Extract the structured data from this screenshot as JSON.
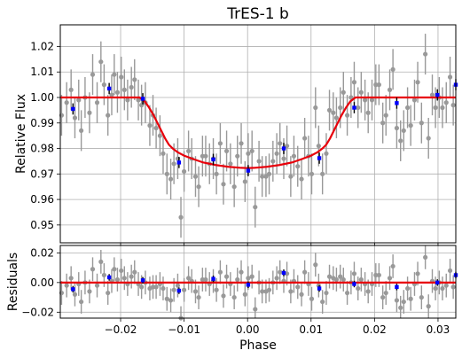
{
  "colors": {
    "model": "#e8000b",
    "binned": "#0000ff",
    "raw": "#999999",
    "grid": "#b0b0b0",
    "axes": "#000000",
    "background": "#ffffff"
  },
  "chart_data": [
    {
      "type": "scatter",
      "panel": "flux",
      "title": "TrES-1 b",
      "xlabel": "",
      "ylabel": "Relative Flux",
      "xlim": [
        -0.0295,
        0.0328
      ],
      "ylim": [
        0.943,
        1.0285
      ],
      "x_ticks": [],
      "y_ticks": [
        0.95,
        0.96,
        0.97,
        0.98,
        0.99,
        1.0,
        1.01,
        1.02
      ],
      "y_tick_labels": [
        "0.95",
        "0.96",
        "0.97",
        "0.98",
        "0.99",
        "1.00",
        "1.01",
        "1.02"
      ],
      "grid": true,
      "series": [
        {
          "kind": "raw",
          "x": [
            -0.0293,
            -0.0285,
            -0.0278,
            -0.0272,
            -0.0266,
            -0.0262,
            -0.0256,
            -0.0249,
            -0.0244,
            -0.0237,
            -0.0231,
            -0.0226,
            -0.022,
            -0.0214,
            -0.021,
            -0.0205,
            -0.0199,
            -0.0194,
            -0.0189,
            -0.0183,
            -0.0178,
            -0.0172,
            -0.0167,
            -0.0161,
            -0.0154,
            -0.0149,
            -0.0144,
            -0.0138,
            -0.0133,
            -0.0127,
            -0.0121,
            -0.0116,
            -0.011,
            -0.0105,
            -0.01,
            -0.0093,
            -0.0088,
            -0.0082,
            -0.0077,
            -0.0071,
            -0.0066,
            -0.006,
            -0.0054,
            -0.0049,
            -0.0043,
            -0.0038,
            -0.0033,
            -0.0027,
            -0.0021,
            -0.0016,
            -0.001,
            -0.0004,
            0.0001,
            0.0007,
            0.0012,
            0.0018,
            0.0023,
            0.0029,
            0.0034,
            0.004,
            0.0046,
            0.0051,
            0.0057,
            0.0062,
            0.0068,
            0.0073,
            0.0079,
            0.0085,
            0.009,
            0.0096,
            0.0101,
            0.0107,
            0.0112,
            0.0118,
            0.0124,
            0.0129,
            0.0135,
            0.014,
            0.0146,
            0.0151,
            0.0157,
            0.0163,
            0.0168,
            0.0174,
            0.0179,
            0.0185,
            0.019,
            0.0196,
            0.0202,
            0.0207,
            0.0213,
            0.0218,
            0.0224,
            0.0229,
            0.0235,
            0.0241,
            0.0246,
            0.0252,
            0.0257,
            0.0263,
            0.0268,
            0.0274,
            0.028,
            0.0285,
            0.0291,
            0.0296,
            0.0302,
            0.0307,
            0.0313,
            0.0319,
            0.0324
          ],
          "y": [
            0.993,
            0.998,
            1.003,
            0.992,
            0.999,
            0.987,
            1.0,
            0.994,
            1.009,
            0.998,
            1.014,
            1.005,
            0.993,
            1.001,
            1.009,
            1.002,
            1.008,
            1.003,
            0.999,
            1.004,
            1.007,
            0.999,
            0.997,
            0.998,
            0.989,
            0.993,
            0.988,
            0.985,
            0.978,
            0.97,
            0.968,
            0.974,
            0.976,
            0.953,
            0.971,
            0.979,
            0.976,
            0.969,
            0.965,
            0.977,
            0.977,
            0.974,
            0.976,
            0.97,
            0.982,
            0.966,
            0.979,
            0.974,
            0.965,
            0.977,
            0.982,
            0.967,
            0.978,
            0.979,
            0.957,
            0.975,
            0.969,
            0.969,
            0.97,
            0.975,
            0.978,
            0.982,
            0.976,
            0.981,
            0.969,
            0.977,
            0.973,
            0.968,
            0.984,
            0.977,
            0.97,
            0.996,
            0.981,
            0.97,
            0.978,
            0.995,
            0.994,
            0.992,
            0.996,
            1.002,
            0.993,
            1.0,
            1.006,
            0.996,
            1.002,
            0.999,
            0.994,
            0.999,
            1.005,
            1.005,
            0.99,
            0.993,
            1.003,
            1.011,
            0.988,
            0.983,
            0.987,
            0.996,
            0.989,
            0.999,
            1.006,
            0.99,
            1.017,
            0.984,
            1.001,
            0.996,
            1.0,
            0.996,
            0.998,
            1.008,
            0.997
          ],
          "err": 0.008
        },
        {
          "kind": "binned",
          "x": [
            -0.0275,
            -0.0218,
            -0.0165,
            -0.0108,
            -0.0054,
            0.0001,
            0.0057,
            0.0113,
            0.0168,
            0.0235,
            0.0299,
            0.0328
          ],
          "y": [
            0.9955,
            1.0035,
            0.9995,
            0.9745,
            0.9757,
            0.9713,
            0.98,
            0.9762,
            0.996,
            0.9978,
            1.001,
            1.005
          ],
          "err": 0.0022
        },
        {
          "kind": "model",
          "x": [
            -0.0295,
            -0.02,
            -0.017,
            -0.0162,
            -0.0155,
            -0.0148,
            -0.0142,
            -0.0136,
            -0.013,
            -0.0124,
            -0.0118,
            -0.011,
            -0.01,
            -0.0085,
            -0.007,
            -0.005,
            -0.003,
            -0.001,
            0.0,
            0.001,
            0.003,
            0.005,
            0.007,
            0.0085,
            0.01,
            0.011,
            0.0118,
            0.0124,
            0.013,
            0.0136,
            0.0142,
            0.0148,
            0.0155,
            0.0162,
            0.017,
            0.02,
            0.0328
          ],
          "y": [
            1.0,
            1.0,
            1.0,
            0.9985,
            0.996,
            0.993,
            0.99,
            0.987,
            0.984,
            0.9815,
            0.98,
            0.9785,
            0.9772,
            0.9758,
            0.9745,
            0.9735,
            0.9728,
            0.9724,
            0.9723,
            0.9724,
            0.9728,
            0.9735,
            0.9745,
            0.9758,
            0.9772,
            0.9785,
            0.98,
            0.9815,
            0.984,
            0.987,
            0.99,
            0.993,
            0.996,
            0.9985,
            1.0,
            1.0,
            1.0
          ]
        }
      ]
    },
    {
      "type": "scatter",
      "panel": "residuals",
      "title": "",
      "xlabel": "Phase",
      "ylabel": "Residuals",
      "xlim": [
        -0.0295,
        0.0328
      ],
      "ylim": [
        -0.024,
        0.025
      ],
      "x_ticks": [
        -0.02,
        -0.01,
        0.0,
        0.01,
        0.02,
        0.03
      ],
      "x_tick_labels": [
        "−0.02",
        "−0.01",
        "0.00",
        "0.01",
        "0.02",
        "0.03"
      ],
      "y_ticks": [
        -0.02,
        0.0,
        0.02
      ],
      "y_tick_labels": [
        "−0.02",
        "0.00",
        "0.02"
      ],
      "grid": true,
      "series": [
        {
          "kind": "raw",
          "x": [
            -0.0293,
            -0.0285,
            -0.0278,
            -0.0272,
            -0.0266,
            -0.0262,
            -0.0256,
            -0.0249,
            -0.0244,
            -0.0237,
            -0.0231,
            -0.0226,
            -0.022,
            -0.0214,
            -0.021,
            -0.0205,
            -0.0199,
            -0.0194,
            -0.0189,
            -0.0183,
            -0.0178,
            -0.0172,
            -0.0167,
            -0.0161,
            -0.0154,
            -0.0149,
            -0.0144,
            -0.0138,
            -0.0133,
            -0.0127,
            -0.0121,
            -0.0116,
            -0.011,
            -0.0105,
            -0.01,
            -0.0093,
            -0.0088,
            -0.0082,
            -0.0077,
            -0.0071,
            -0.0066,
            -0.006,
            -0.0054,
            -0.0049,
            -0.0043,
            -0.0038,
            -0.0033,
            -0.0027,
            -0.0021,
            -0.0016,
            -0.001,
            -0.0004,
            0.0001,
            0.0007,
            0.0012,
            0.0018,
            0.0023,
            0.0029,
            0.0034,
            0.004,
            0.0046,
            0.0051,
            0.0057,
            0.0062,
            0.0068,
            0.0073,
            0.0079,
            0.0085,
            0.009,
            0.0096,
            0.0101,
            0.0107,
            0.0112,
            0.0118,
            0.0124,
            0.0129,
            0.0135,
            0.014,
            0.0146,
            0.0151,
            0.0157,
            0.0163,
            0.0168,
            0.0174,
            0.0179,
            0.0185,
            0.019,
            0.0196,
            0.0202,
            0.0207,
            0.0213,
            0.0218,
            0.0224,
            0.0229,
            0.0235,
            0.0241,
            0.0246,
            0.0252,
            0.0257,
            0.0263,
            0.0268,
            0.0274,
            0.028,
            0.0285,
            0.0291,
            0.0296,
            0.0302,
            0.0307,
            0.0313,
            0.0319,
            0.0324
          ],
          "y": [
            -0.007,
            -0.002,
            0.003,
            -0.008,
            -0.001,
            -0.013,
            0.0,
            -0.006,
            0.009,
            -0.002,
            0.014,
            0.005,
            -0.007,
            0.001,
            0.009,
            0.002,
            0.008,
            0.003,
            -0.001,
            0.004,
            0.007,
            -0.001,
            -0.003,
            0.0,
            -0.004,
            -0.003,
            -0.003,
            -0.001,
            -0.004,
            -0.011,
            -0.012,
            -0.005,
            -0.002,
            -0.024,
            -0.005,
            0.003,
            0.001,
            -0.006,
            -0.01,
            0.002,
            0.002,
            -0.001,
            0.001,
            -0.005,
            0.007,
            -0.009,
            0.004,
            -0.001,
            -0.01,
            0.002,
            0.007,
            -0.008,
            0.003,
            0.004,
            -0.018,
            0.0,
            -0.006,
            -0.006,
            -0.005,
            0.0,
            0.003,
            0.007,
            0.001,
            0.006,
            -0.006,
            0.001,
            -0.003,
            -0.008,
            0.007,
            -0.001,
            -0.011,
            0.012,
            -0.002,
            -0.013,
            -0.007,
            0.004,
            0.003,
            0.002,
            0.004,
            0.002,
            -0.007,
            0.0,
            0.006,
            -0.004,
            0.002,
            -0.001,
            -0.006,
            -0.001,
            0.005,
            0.005,
            -0.01,
            -0.007,
            0.003,
            0.011,
            -0.012,
            -0.017,
            -0.013,
            -0.004,
            -0.011,
            -0.001,
            0.006,
            -0.01,
            0.017,
            -0.016,
            0.001,
            -0.004,
            0.0,
            -0.004,
            -0.002,
            0.008,
            -0.003
          ],
          "err": 0.008
        },
        {
          "kind": "binned",
          "x": [
            -0.0275,
            -0.0218,
            -0.0165,
            -0.0108,
            -0.0054,
            0.0001,
            0.0057,
            0.0113,
            0.0168,
            0.0235,
            0.0299,
            0.0328
          ],
          "y": [
            -0.0045,
            0.0035,
            0.0015,
            -0.0055,
            0.0025,
            -0.0015,
            0.0065,
            -0.004,
            -0.001,
            -0.003,
            0.0,
            0.005
          ],
          "err": 0.0022
        },
        {
          "kind": "model",
          "x": [
            -0.0295,
            0.0328
          ],
          "y": [
            0.0,
            0.0
          ]
        }
      ]
    }
  ]
}
